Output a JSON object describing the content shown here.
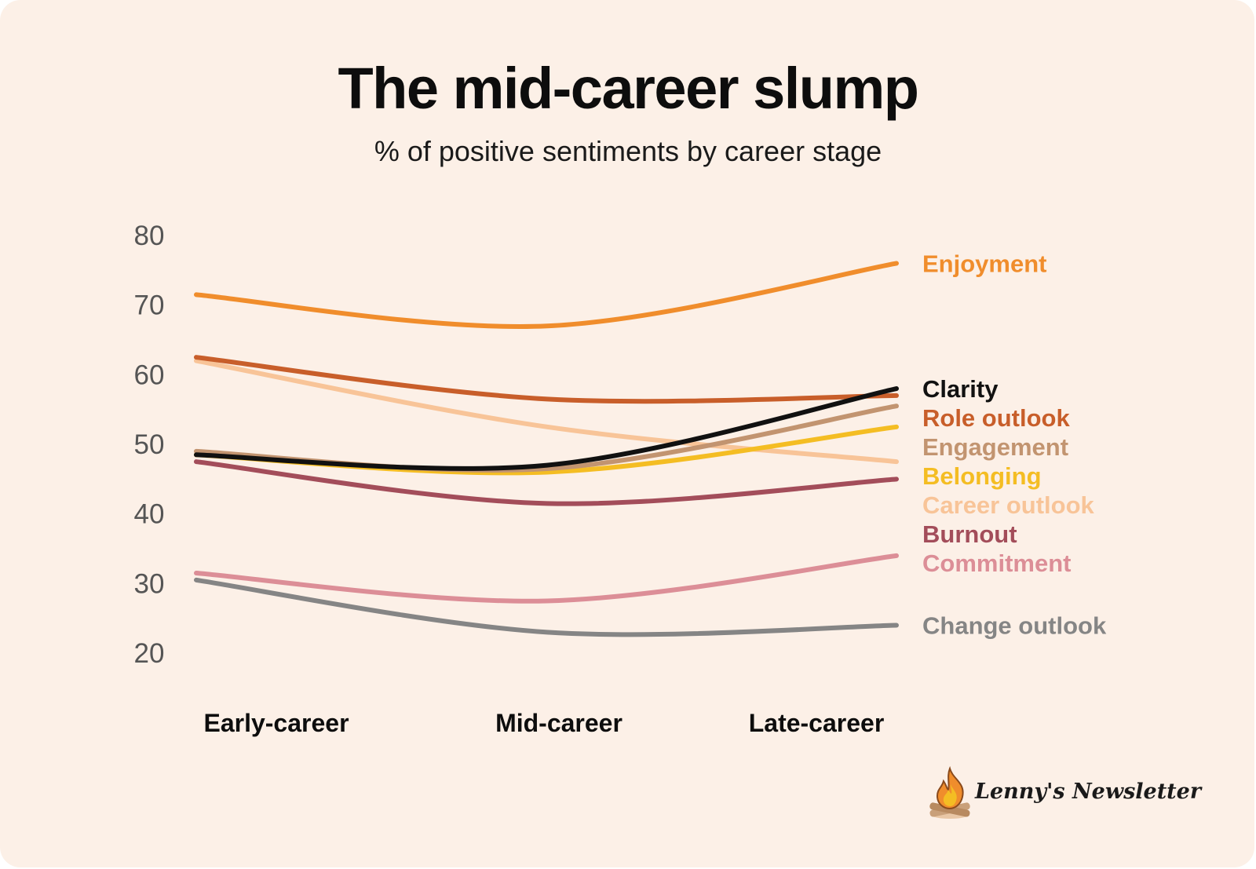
{
  "header": {
    "title": "The mid-career slump",
    "subtitle": "% of positive sentiments by career stage"
  },
  "chart_data": {
    "type": "line",
    "title": "The mid-career slump",
    "subtitle": "% of positive sentiments by career stage",
    "xlabel": "",
    "ylabel": "",
    "categories": [
      "Early-career",
      "Mid-career",
      "Late-career"
    ],
    "ylim": [
      20,
      80
    ],
    "yticks": [
      80,
      70,
      60,
      50,
      40,
      30,
      20
    ],
    "grid": false,
    "legend_placement": "right, labels aligned to line ends",
    "series": [
      {
        "name": "Enjoyment",
        "color": "#f08d2c",
        "values": [
          71.5,
          67,
          76
        ]
      },
      {
        "name": "Clarity",
        "color": "#111111",
        "values": [
          48.5,
          47,
          58
        ]
      },
      {
        "name": "Role outlook",
        "color": "#c85e2a",
        "values": [
          62.5,
          56.5,
          57
        ]
      },
      {
        "name": "Engagement",
        "color": "#c29470",
        "values": [
          49,
          46.5,
          55.5
        ]
      },
      {
        "name": "Belonging",
        "color": "#f4bd23",
        "values": [
          48.5,
          46,
          52.5
        ]
      },
      {
        "name": "Career outlook",
        "color": "#f8c498",
        "values": [
          62,
          52.5,
          47.5
        ]
      },
      {
        "name": "Burnout",
        "color": "#a34d5a",
        "values": [
          47.5,
          41.5,
          45
        ]
      },
      {
        "name": "Commitment",
        "color": "#dc8e97",
        "values": [
          31.5,
          27.5,
          34
        ]
      },
      {
        "name": "Change outlook",
        "color": "#858585",
        "values": [
          30.5,
          23,
          24
        ]
      }
    ]
  },
  "brand": {
    "name": "Lenny's Newsletter",
    "icon": "campfire-icon",
    "flame_colors": [
      "#f08d2c",
      "#f4bd23"
    ]
  }
}
